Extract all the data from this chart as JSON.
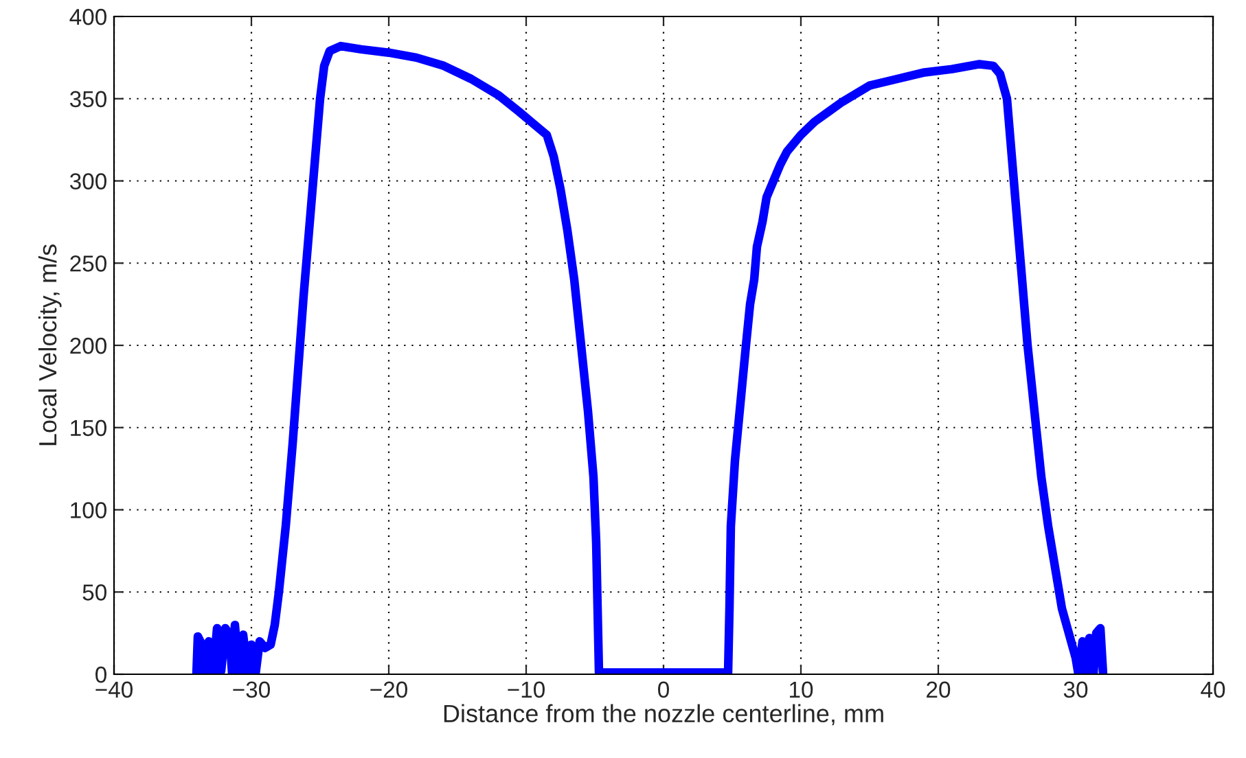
{
  "chart_data": {
    "type": "line",
    "xlabel": "Distance from the nozzle centerline, mm",
    "ylabel": "Local Velocity, m/s",
    "xlim": [
      -40,
      40
    ],
    "xticks": [
      {
        "value": -40,
        "label": "−40"
      },
      {
        "value": -30,
        "label": "−30"
      },
      {
        "value": -20,
        "label": "−20"
      },
      {
        "value": -10,
        "label": "−10"
      },
      0,
      10,
      20,
      30,
      40
    ],
    "ylim": [
      0,
      400
    ],
    "yticks": [
      0,
      50,
      100,
      150,
      200,
      250,
      300,
      350,
      400
    ],
    "grid": true,
    "line_style": "solid",
    "marker": "none",
    "series": [
      {
        "color": "#0000ff",
        "x": [
          -34.0,
          -33.9,
          -33.6,
          -33.4,
          -33.1,
          -32.8,
          -32.5,
          -32.2,
          -31.9,
          -31.6,
          -31.4,
          -31.2,
          -30.9,
          -30.6,
          -30.3,
          -30.0,
          -29.7,
          -29.4,
          -29.0,
          -28.6,
          -28.3,
          -28.0,
          -27.5,
          -27.0,
          -26.6,
          -26.2,
          -25.8,
          -25.4,
          -25.0,
          -24.7,
          -24.3,
          -23.5,
          -22,
          -20,
          -18,
          -16,
          -14,
          -12,
          -10.5,
          -9.5,
          -8.5,
          -8,
          -7.5,
          -7,
          -6.5,
          -6.0,
          -5.5,
          -5.1,
          -4.9,
          -4.8,
          -4.7,
          0,
          4.7,
          4.8,
          4.9,
          5.2,
          5.6,
          6.0,
          6.3,
          6.6,
          6.8,
          7.2,
          7.5,
          8,
          8.5,
          9,
          10,
          11,
          12,
          13,
          14,
          15,
          17,
          19,
          21,
          23,
          24,
          24.5,
          25,
          25.3,
          25.6,
          26,
          26.5,
          27,
          27.5,
          28,
          28.6,
          29,
          29.5,
          30,
          30.2,
          30.5,
          30.8,
          31.0,
          31.3,
          31.5,
          31.8,
          32.0
        ],
        "values": [
          0,
          23,
          18,
          0,
          20,
          0,
          28,
          2,
          28,
          24,
          0,
          30,
          0,
          24,
          2,
          18,
          0,
          20,
          16,
          18,
          30,
          50,
          90,
          140,
          185,
          230,
          270,
          310,
          350,
          370,
          379,
          382,
          380,
          378,
          375,
          370,
          362,
          352,
          342,
          335,
          328,
          315,
          295,
          270,
          240,
          200,
          160,
          120,
          80,
          40,
          1,
          1,
          1,
          40,
          90,
          130,
          165,
          200,
          225,
          240,
          260,
          275,
          290,
          300,
          310,
          318,
          328,
          336,
          342,
          348,
          353,
          358,
          362,
          366,
          368,
          371,
          370,
          365,
          350,
          320,
          290,
          250,
          200,
          160,
          120,
          90,
          60,
          40,
          25,
          10,
          0,
          20,
          0,
          22,
          0,
          25,
          28,
          0
        ]
      }
    ]
  }
}
